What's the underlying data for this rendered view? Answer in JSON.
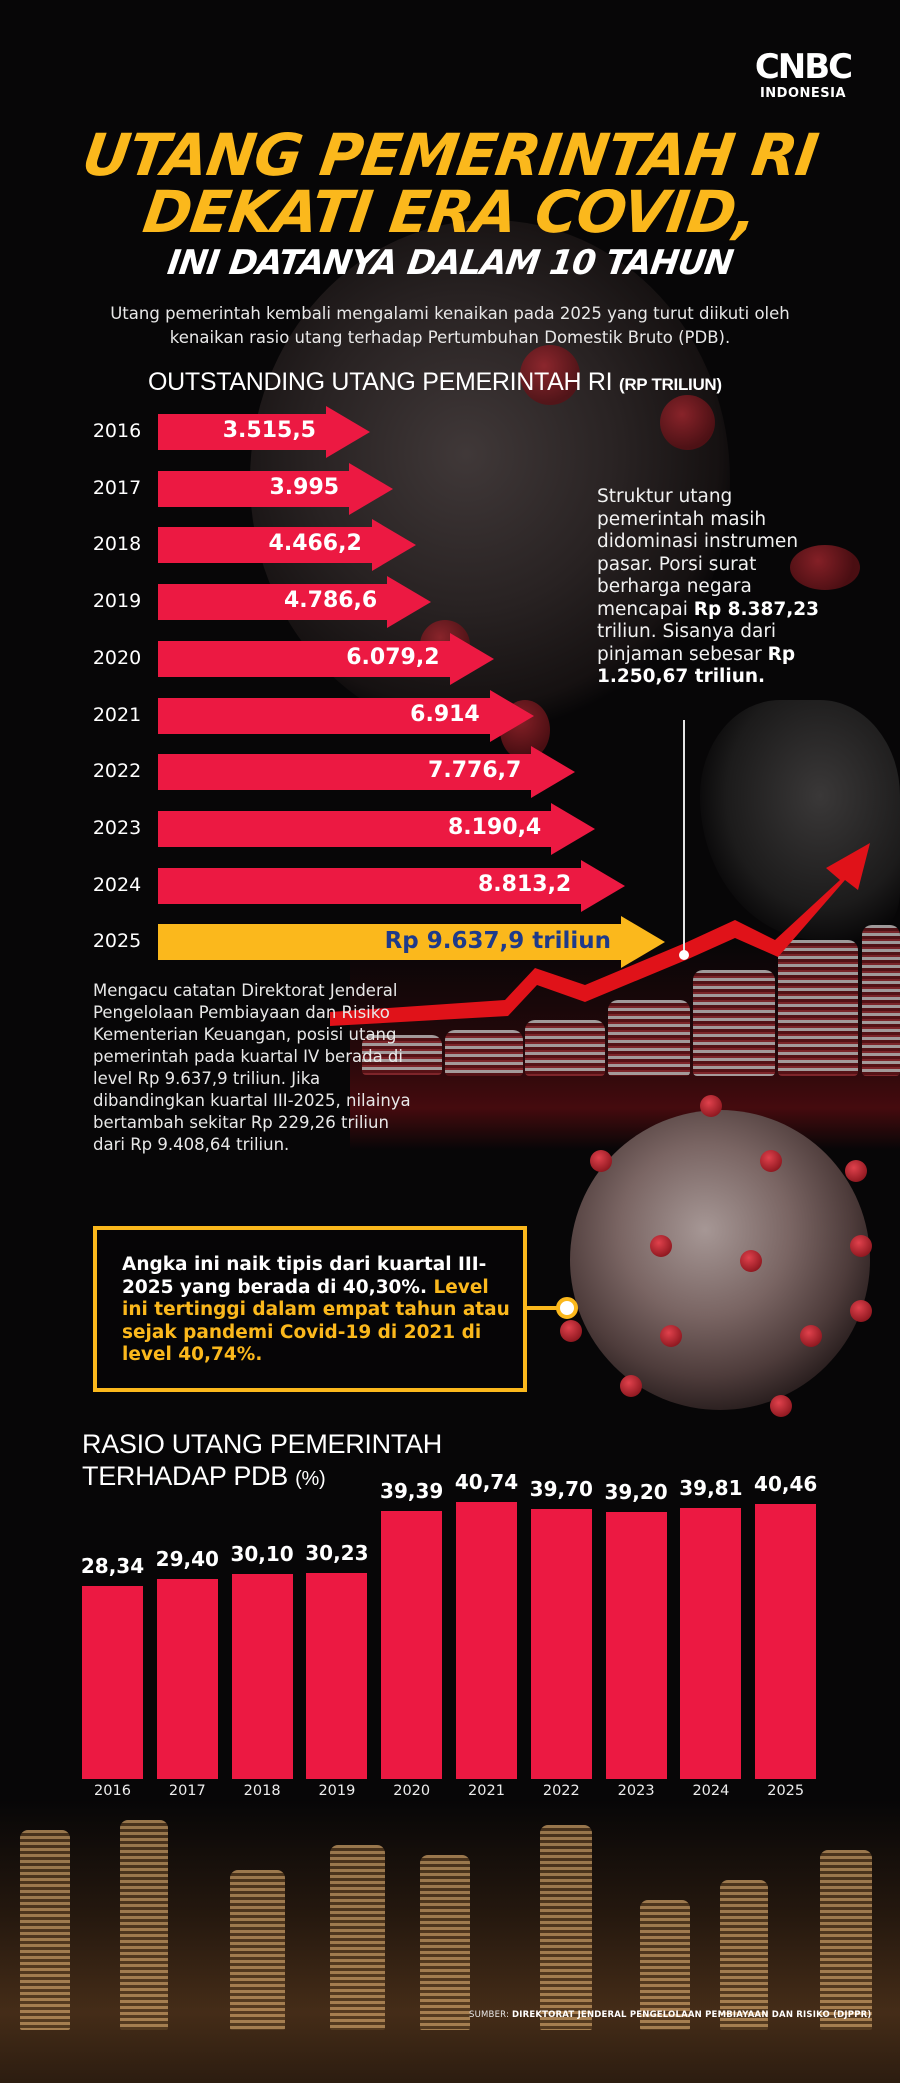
{
  "brand": {
    "logo_main": "CNBC",
    "logo_sub": "INDONESIA",
    "accent_blue": "#1e7be6"
  },
  "header": {
    "title_line1": "UTANG PEMERINTAH RI",
    "title_line2": "DEKATI ERA COVID,",
    "subtitle": "INI DATANYA DALAM 10 TAHUN",
    "intro": "Utang pemerintah kembali mengalami kenaikan pada 2025 yang turut diikuti oleh kenaikan rasio utang terhadap Pertumbuhan Domestik Bruto (PDB)."
  },
  "colors": {
    "red": "#ec1942",
    "yellow": "#fbb81c",
    "navy": "#1e3a8a",
    "background": "#070607"
  },
  "outstanding": {
    "title": "OUTSTANDING UTANG PEMERINTAH RI ",
    "unit": "(RP TRILIUN)",
    "rows": [
      {
        "year": "2016",
        "label": "3.515,5"
      },
      {
        "year": "2017",
        "label": "3.995"
      },
      {
        "year": "2018",
        "label": "4.466,2"
      },
      {
        "year": "2019",
        "label": "4.786,6"
      },
      {
        "year": "2020",
        "label": "6.079,2"
      },
      {
        "year": "2021",
        "label": "6.914"
      },
      {
        "year": "2022",
        "label": "7.776,7"
      },
      {
        "year": "2023",
        "label": "8.190,4"
      },
      {
        "year": "2024",
        "label": "8.813,2"
      },
      {
        "year": "2025",
        "label": "Rp 9.637,9 triliun"
      }
    ]
  },
  "side_note": {
    "text1": "Struktur utang pemerintah masih didominasi instrumen pasar. Porsi surat berharga negara mencapai ",
    "bold1": "Rp 8.387,23",
    "text2": " triliun. Sisanya dari pinjaman sebesar ",
    "bold2": "Rp 1.250,67 triliun."
  },
  "body_note": "Mengacu catatan Direktorat Jenderal Pengelolaan Pembiayaan dan Risiko Kementerian Keuangan, posisi utang pemerintah pada kuartal IV berada di level Rp 9.637,9 triliun. Jika dibandingkan kuartal III-2025, nilainya bertambah sekitar Rp 229,26 triliun dari Rp 9.408,64 triliun.",
  "highlight": {
    "text": "Angka ini naik tipis dari kuartal III-2025 yang berada di 40,30%. ",
    "accent": "Level ini tertinggi dalam empat tahun atau sejak pandemi Covid-19 di 2021 di level 40,74%."
  },
  "ratio": {
    "title_line1": "RASIO UTANG PEMERINTAH",
    "title_line2": "TERHADAP PDB ",
    "unit": "(%)",
    "bars": [
      {
        "year": "2016",
        "label": "28,34"
      },
      {
        "year": "2017",
        "label": "29,40"
      },
      {
        "year": "2018",
        "label": "30,10"
      },
      {
        "year": "2019",
        "label": "30,23"
      },
      {
        "year": "2020",
        "label": "39,39"
      },
      {
        "year": "2021",
        "label": "40,74"
      },
      {
        "year": "2022",
        "label": "39,70"
      },
      {
        "year": "2023",
        "label": "39,20"
      },
      {
        "year": "2024",
        "label": "39,81"
      },
      {
        "year": "2025",
        "label": "40,46"
      }
    ]
  },
  "source": {
    "prefix": "SUMBER: ",
    "name": "DIREKTORAT JENDERAL PENGELOLAAN PEMBIAYAAN DAN RISIKO (DJPPR)"
  },
  "chart_data": [
    {
      "type": "bar",
      "orientation": "horizontal",
      "title": "OUTSTANDING UTANG PEMERINTAH RI (RP TRILIUN)",
      "categories": [
        "2016",
        "2017",
        "2018",
        "2019",
        "2020",
        "2021",
        "2022",
        "2023",
        "2024",
        "2025"
      ],
      "values": [
        3515.5,
        3995,
        4466.2,
        4786.6,
        6079.2,
        6914,
        7776.7,
        8190.4,
        8813.2,
        9637.9
      ],
      "labels": [
        "3.515,5",
        "3.995",
        "4.466,2",
        "4.786,6",
        "6.079,2",
        "6.914",
        "7.776,7",
        "8.190,4",
        "8.813,2",
        "Rp 9.637,9 triliun"
      ],
      "xlabel": "",
      "ylabel": "",
      "unit": "Rp triliun",
      "highlight_index": 9,
      "grid": false,
      "legend": null
    },
    {
      "type": "bar",
      "orientation": "vertical",
      "title": "RASIO UTANG PEMERINTAH TERHADAP PDB (%)",
      "categories": [
        "2016",
        "2017",
        "2018",
        "2019",
        "2020",
        "2021",
        "2022",
        "2023",
        "2024",
        "2025"
      ],
      "values": [
        28.34,
        29.4,
        30.1,
        30.23,
        39.39,
        40.74,
        39.7,
        39.2,
        39.81,
        40.46
      ],
      "labels": [
        "28,34",
        "29,40",
        "30,10",
        "30,23",
        "39,39",
        "40,74",
        "39,70",
        "39,20",
        "39,81",
        "40,46"
      ],
      "xlabel": "",
      "ylabel": "%",
      "grid": false,
      "legend": null
    }
  ]
}
